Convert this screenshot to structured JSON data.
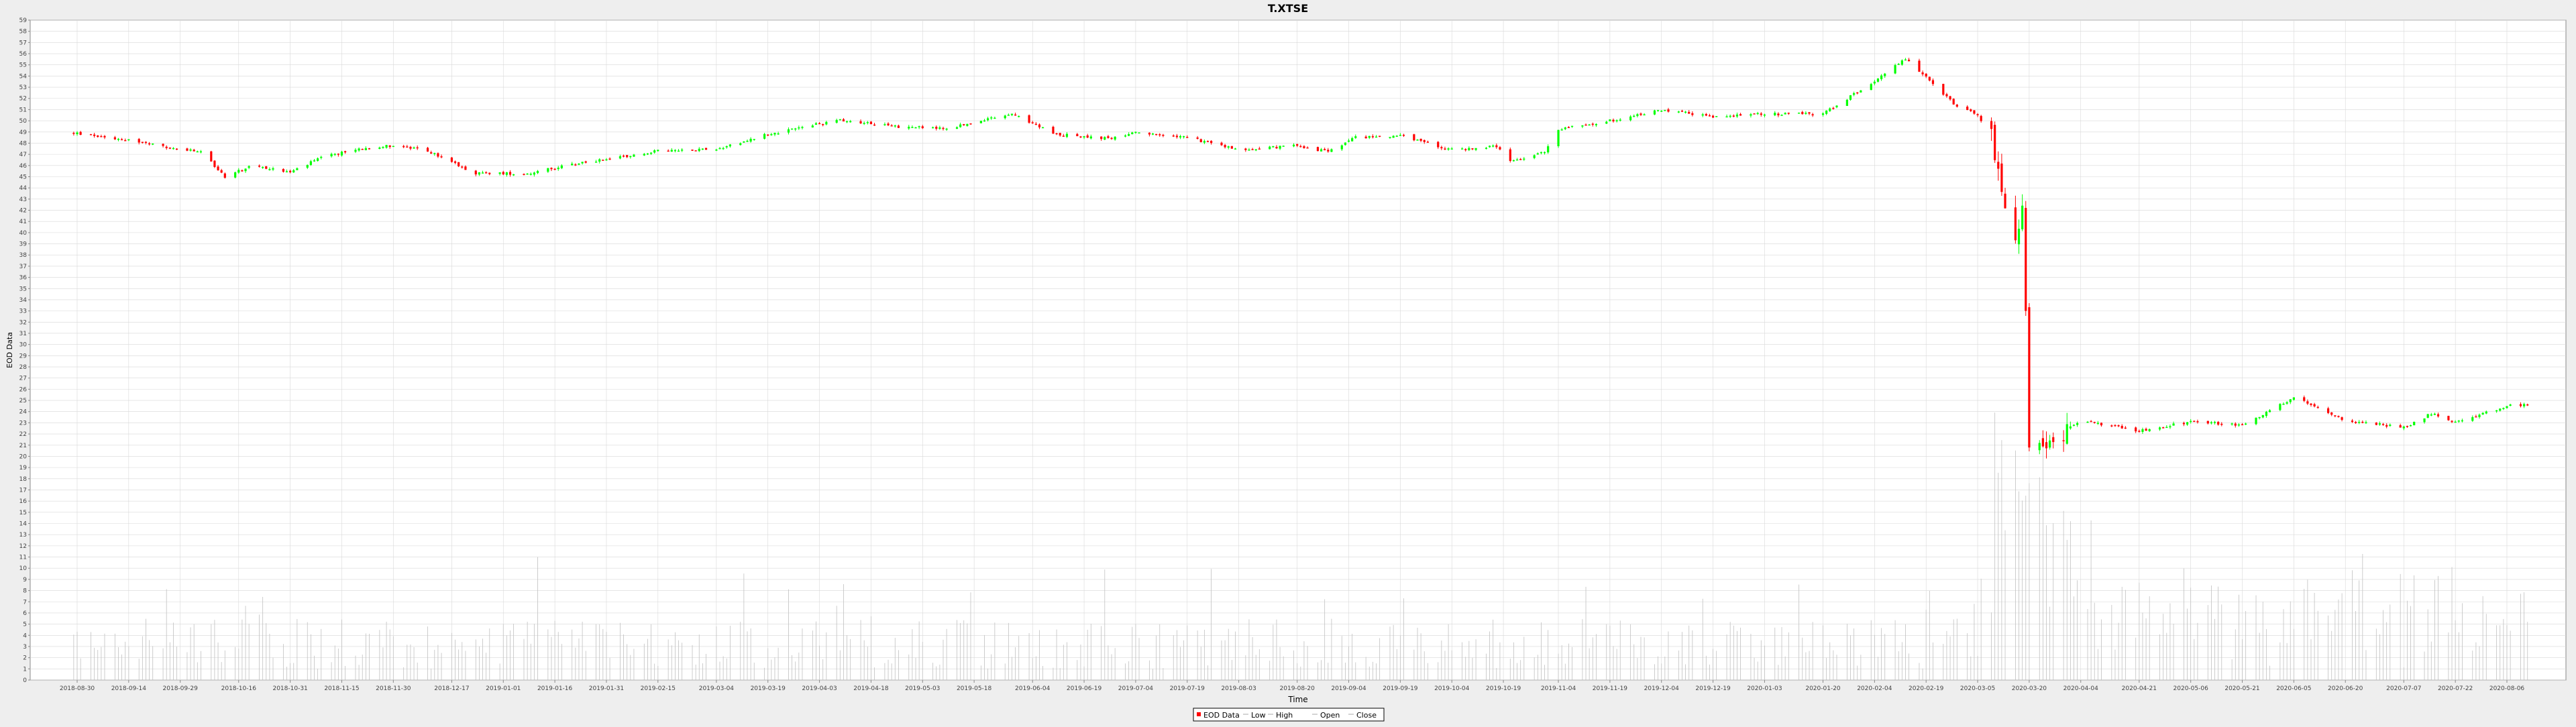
{
  "chart_data": {
    "type": "candlestick",
    "title": "T.XTSE",
    "xlabel": "Time",
    "ylabel": "EOD Data",
    "ylim": [
      0,
      59
    ],
    "y_ticks": [
      0,
      1,
      2,
      3,
      4,
      5,
      6,
      7,
      8,
      9,
      10,
      11,
      12,
      13,
      14,
      15,
      16,
      17,
      18,
      19,
      20,
      21,
      22,
      23,
      24,
      25,
      26,
      27,
      28,
      29,
      30,
      31,
      32,
      33,
      34,
      35,
      36,
      37,
      38,
      39,
      40,
      41,
      42,
      43,
      44,
      45,
      46,
      47,
      48,
      49,
      50,
      51,
      52,
      53,
      54,
      55,
      56,
      57,
      58,
      59
    ],
    "x_tick_labels": [
      "2018-08-30",
      "2018-09-14",
      "2018-09-29",
      "2018-10-16",
      "2018-10-31",
      "2018-11-15",
      "2018-11-30",
      "2018-12-17",
      "2019-01-01",
      "2019-01-16",
      "2019-01-31",
      "2019-02-15",
      "2019-03-04",
      "2019-03-19",
      "2019-04-03",
      "2019-04-18",
      "2019-05-03",
      "2019-05-18",
      "2019-06-04",
      "2019-06-19",
      "2019-07-04",
      "2019-07-19",
      "2019-08-03",
      "2019-08-20",
      "2019-09-04",
      "2019-09-19",
      "2019-10-04",
      "2019-10-19",
      "2019-11-04",
      "2019-11-19",
      "2019-12-04",
      "2019-12-19",
      "2020-01-03",
      "2020-01-20",
      "2020-02-04",
      "2020-02-19",
      "2020-03-05",
      "2020-03-20",
      "2020-04-04",
      "2020-04-21",
      "2020-05-06",
      "2020-05-21",
      "2020-06-05",
      "2020-06-20",
      "2020-07-07",
      "2020-07-22",
      "2020-08-06"
    ],
    "grid": true,
    "legend_position": "bottom-center",
    "legend": [
      {
        "label": "EOD Data",
        "kind": "box"
      },
      {
        "label": "Low",
        "kind": "line"
      },
      {
        "label": "High",
        "kind": "line"
      },
      {
        "label": "Open",
        "kind": "line"
      },
      {
        "label": "Close",
        "kind": "line"
      }
    ],
    "colors": {
      "up": "#00ff00",
      "down": "#ff0000",
      "volume": "#c0c0c0",
      "grid": "#d8d8d8",
      "axis": "#888888",
      "background": "#ffffff"
    },
    "series_outline": [
      {
        "date": "2018-08-29",
        "price": 48.9
      },
      {
        "date": "2018-09-14",
        "price": 48.3
      },
      {
        "date": "2018-09-25",
        "price": 47.6
      },
      {
        "date": "2018-10-05",
        "price": 47.2
      },
      {
        "date": "2018-10-12",
        "price": 45.0
      },
      {
        "date": "2018-10-20",
        "price": 46.0
      },
      {
        "date": "2018-10-31",
        "price": 45.4
      },
      {
        "date": "2018-11-09",
        "price": 46.7
      },
      {
        "date": "2018-11-20",
        "price": 47.5
      },
      {
        "date": "2018-11-30",
        "price": 47.8
      },
      {
        "date": "2018-12-10",
        "price": 47.3
      },
      {
        "date": "2018-12-24",
        "price": 45.3
      },
      {
        "date": "2019-01-08",
        "price": 45.3
      },
      {
        "date": "2019-01-25",
        "price": 46.3
      },
      {
        "date": "2019-02-15",
        "price": 47.3
      },
      {
        "date": "2019-03-04",
        "price": 47.5
      },
      {
        "date": "2019-03-19",
        "price": 48.8
      },
      {
        "date": "2019-04-09",
        "price": 50.1
      },
      {
        "date": "2019-04-25",
        "price": 49.5
      },
      {
        "date": "2019-05-10",
        "price": 49.3
      },
      {
        "date": "2019-05-29",
        "price": 50.6
      },
      {
        "date": "2019-06-11",
        "price": 48.8
      },
      {
        "date": "2019-06-26",
        "price": 48.4
      },
      {
        "date": "2019-07-04",
        "price": 48.9
      },
      {
        "date": "2019-07-19",
        "price": 48.5
      },
      {
        "date": "2019-08-03",
        "price": 47.4
      },
      {
        "date": "2019-08-20",
        "price": 47.8
      },
      {
        "date": "2019-08-29",
        "price": 47.2
      },
      {
        "date": "2019-09-06",
        "price": 48.5
      },
      {
        "date": "2019-09-19",
        "price": 48.7
      },
      {
        "date": "2019-10-04",
        "price": 47.4
      },
      {
        "date": "2019-10-17",
        "price": 47.7
      },
      {
        "date": "2019-10-21",
        "price": 46.3
      },
      {
        "date": "2019-10-31",
        "price": 47.2
      },
      {
        "date": "2019-11-04",
        "price": 49.3
      },
      {
        "date": "2019-11-19",
        "price": 50.0
      },
      {
        "date": "2019-12-04",
        "price": 51.0
      },
      {
        "date": "2019-12-19",
        "price": 50.4
      },
      {
        "date": "2020-01-03",
        "price": 50.6
      },
      {
        "date": "2020-01-20",
        "price": 50.6
      },
      {
        "date": "2020-02-04",
        "price": 53.6
      },
      {
        "date": "2020-02-13",
        "price": 55.5
      },
      {
        "date": "2020-02-19",
        "price": 54.0
      },
      {
        "date": "2020-02-27",
        "price": 51.5
      },
      {
        "date": "2020-03-05",
        "price": 50.5
      },
      {
        "date": "2020-03-09",
        "price": 48.5
      },
      {
        "date": "2020-03-13",
        "price": 42.0
      },
      {
        "date": "2020-03-16",
        "price": 39.0
      },
      {
        "date": "2020-03-18",
        "price": 43.0
      },
      {
        "date": "2020-03-20",
        "price": 21.5
      },
      {
        "date": "2020-03-27",
        "price": 21.3
      },
      {
        "date": "2020-04-04",
        "price": 23.2
      },
      {
        "date": "2020-04-21",
        "price": 22.3
      },
      {
        "date": "2020-05-06",
        "price": 23.1
      },
      {
        "date": "2020-05-21",
        "price": 22.8
      },
      {
        "date": "2020-06-05",
        "price": 25.3
      },
      {
        "date": "2020-06-20",
        "price": 23.2
      },
      {
        "date": "2020-07-07",
        "price": 22.6
      },
      {
        "date": "2020-07-15",
        "price": 23.8
      },
      {
        "date": "2020-07-22",
        "price": 23.0
      },
      {
        "date": "2020-08-06",
        "price": 24.5
      },
      {
        "date": "2020-08-12",
        "price": 24.6
      }
    ]
  }
}
